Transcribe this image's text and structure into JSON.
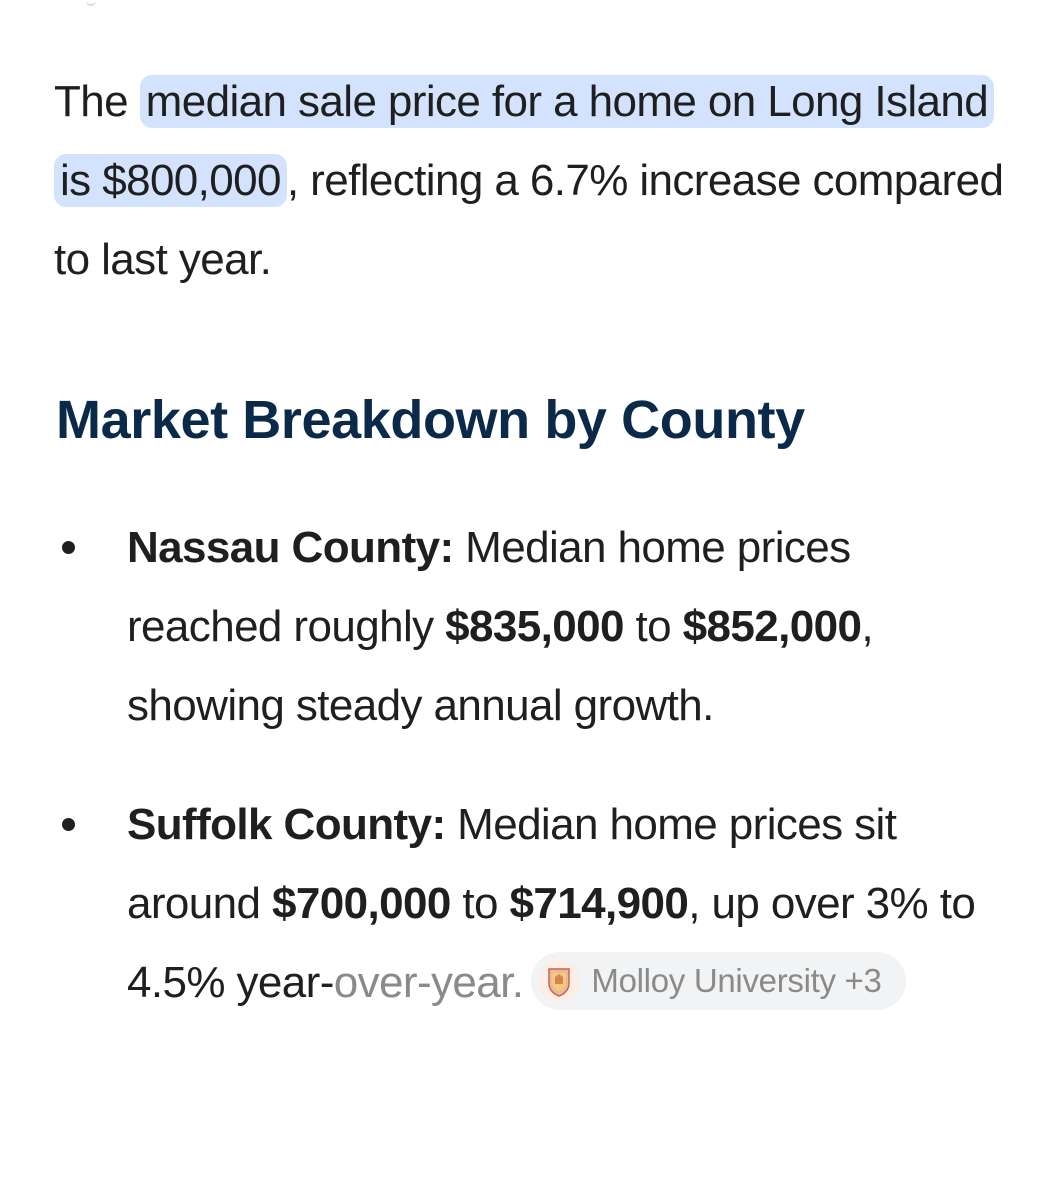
{
  "intro": {
    "prefix": "The ",
    "highlight": "median sale price for a home on Long Island is $800,000",
    "suffix": ", reflecting a 6.7% increase compared to last year."
  },
  "heading": "Market Breakdown by County",
  "items": [
    {
      "title": "Nassau County:",
      "text1": " Median home prices reached roughly ",
      "price1": "$835,000",
      "text2": " to ",
      "price2": "$852,000",
      "text3": ", showing steady annual growth."
    },
    {
      "title": "Suffolk County:",
      "text1": " Median home prices sit around ",
      "price1": "$700,000",
      "text2": " to ",
      "price2": "$714,900",
      "text3": ", up over 3% to 4.5% year-",
      "text4": "over-year."
    }
  ],
  "source_chip": {
    "label": "Molloy University +3",
    "icon": "university-crest-icon"
  },
  "colors": {
    "highlight": "#d3e3fd",
    "heading": "#0b2a4a",
    "body_text": "#1f1f1f"
  }
}
